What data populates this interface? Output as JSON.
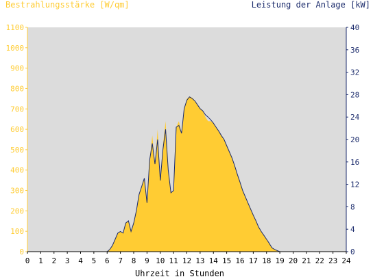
{
  "chart_data": {
    "type": "area",
    "title_left": "Bestrahlungsstärke [W/qm]",
    "title_right": "Leistung der Anlage [kW]",
    "xlabel": "Uhrzeit in Stunden",
    "x_ticks": [
      "0",
      "1",
      "2",
      "3",
      "4",
      "5",
      "6",
      "7",
      "8",
      "9",
      "10",
      "11",
      "12",
      "13",
      "14",
      "15",
      "16",
      "17",
      "18",
      "19",
      "20",
      "21",
      "22",
      "23",
      "24"
    ],
    "y_left_ticks": [
      "0",
      "100",
      "200",
      "300",
      "400",
      "500",
      "600",
      "700",
      "800",
      "900",
      "1000",
      "1100"
    ],
    "y_right_ticks": [
      "0",
      "4",
      "8",
      "12",
      "16",
      "20",
      "24",
      "28",
      "32",
      "36",
      "40"
    ],
    "xlim": [
      0,
      24
    ],
    "y_left_lim": [
      0,
      1100
    ],
    "y_right_lim": [
      0,
      40
    ],
    "grid": false,
    "colors": {
      "plot_background": "#dcdcdc",
      "irradiance_fill": "#ffcc33",
      "power_line": "#1a2a6b",
      "left_axis_text": "#ffcc33",
      "right_axis_text": "#1a2a6b"
    },
    "series": [
      {
        "axis": "left",
        "style": "area",
        "x": [
          0,
          6.0,
          6.2,
          6.4,
          6.6,
          6.8,
          7.0,
          7.2,
          7.4,
          7.6,
          7.8,
          8.0,
          8.2,
          8.4,
          8.6,
          8.8,
          9.0,
          9.2,
          9.4,
          9.6,
          9.8,
          10.0,
          10.2,
          10.4,
          10.6,
          10.8,
          11.0,
          11.2,
          11.4,
          11.6,
          11.8,
          12.0,
          12.2,
          12.4,
          12.6,
          12.8,
          13.0,
          13.2,
          13.4,
          13.6,
          13.8,
          14.0,
          14.2,
          14.4,
          14.6,
          14.8,
          15.0,
          15.2,
          15.4,
          15.6,
          15.8,
          16.0,
          16.2,
          16.4,
          16.6,
          16.8,
          17.0,
          17.2,
          17.4,
          17.6,
          17.8,
          18.0,
          18.2,
          18.4,
          18.6,
          18.8,
          19.0,
          24
        ],
        "values": [
          0,
          0,
          10,
          30,
          60,
          90,
          100,
          90,
          140,
          150,
          100,
          140,
          200,
          280,
          320,
          360,
          240,
          450,
          570,
          430,
          600,
          350,
          520,
          640,
          400,
          290,
          300,
          610,
          640,
          580,
          700,
          750,
          760,
          755,
          740,
          720,
          700,
          690,
          660,
          640,
          640,
          630,
          610,
          590,
          570,
          550,
          520,
          490,
          460,
          420,
          380,
          340,
          300,
          270,
          240,
          210,
          180,
          150,
          120,
          100,
          80,
          60,
          40,
          20,
          10,
          5,
          0,
          0
        ]
      },
      {
        "axis": "right",
        "style": "line",
        "x": [
          0,
          6.0,
          6.2,
          6.4,
          6.6,
          6.8,
          7.0,
          7.2,
          7.4,
          7.6,
          7.8,
          8.0,
          8.2,
          8.4,
          8.6,
          8.8,
          9.0,
          9.2,
          9.4,
          9.6,
          9.8,
          10.0,
          10.2,
          10.4,
          10.6,
          10.8,
          11.0,
          11.2,
          11.4,
          11.6,
          11.8,
          12.0,
          12.2,
          12.4,
          12.6,
          12.8,
          13.0,
          13.2,
          13.4,
          13.6,
          13.8,
          14.0,
          14.2,
          14.4,
          14.6,
          14.8,
          15.0,
          15.2,
          15.4,
          15.6,
          15.8,
          16.0,
          16.2,
          16.4,
          16.6,
          16.8,
          17.0,
          17.2,
          17.4,
          17.6,
          17.8,
          18.0,
          18.2,
          18.4,
          18.6,
          18.8,
          19.0,
          24
        ],
        "values": [
          0,
          0,
          0.4,
          1.1,
          2.2,
          3.3,
          3.6,
          3.3,
          5.1,
          5.5,
          3.6,
          5.1,
          7.3,
          10.2,
          11.6,
          13.1,
          8.7,
          16.4,
          19.3,
          15.6,
          20.0,
          12.7,
          18.2,
          21.8,
          14.5,
          10.5,
          10.9,
          22.2,
          22.5,
          21.1,
          25.5,
          27.0,
          27.6,
          27.3,
          26.9,
          26.2,
          25.5,
          25.1,
          24.4,
          24.0,
          23.5,
          22.9,
          22.2,
          21.5,
          20.7,
          20.0,
          18.9,
          17.8,
          16.7,
          15.3,
          13.8,
          12.4,
          10.9,
          9.8,
          8.7,
          7.6,
          6.5,
          5.5,
          4.4,
          3.6,
          2.9,
          2.2,
          1.5,
          0.7,
          0.4,
          0.2,
          0,
          0
        ]
      }
    ]
  }
}
